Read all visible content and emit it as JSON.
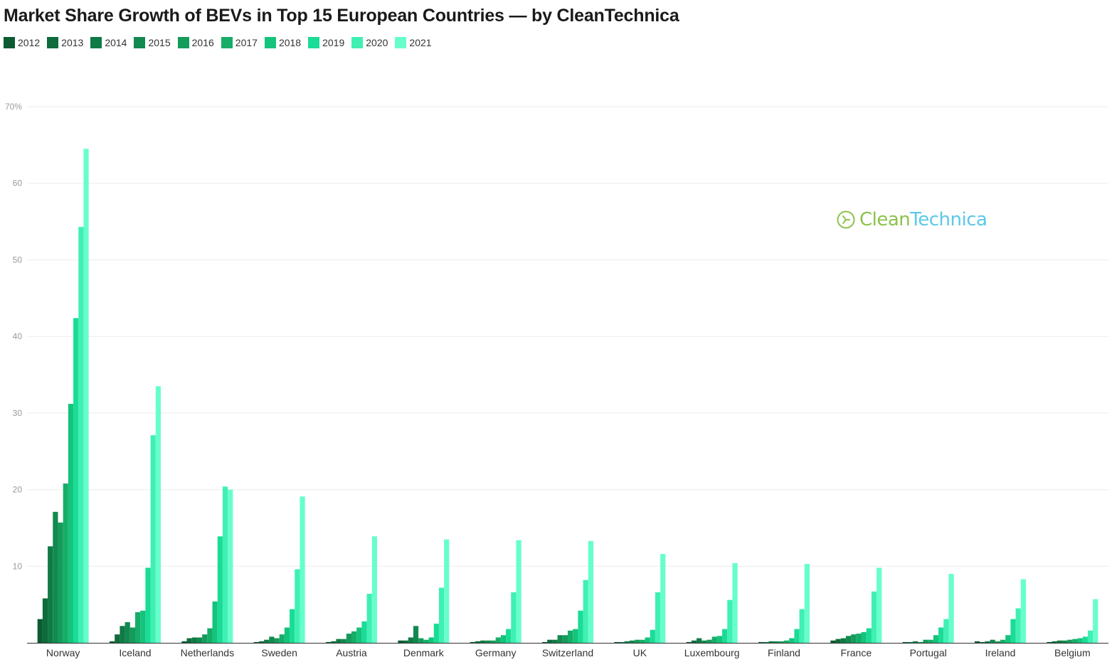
{
  "title": "Market Share Growth of BEVs in Top 15 European Countries — by CleanTechnica",
  "watermark": {
    "clean": "Clean",
    "technica": "Technica"
  },
  "colors": {
    "2012": "#0b5a32",
    "2013": "#0e6b3c",
    "2014": "#107a45",
    "2015": "#12894e",
    "2016": "#159b5b",
    "2017": "#16ad68",
    "2018": "#14c37c",
    "2019": "#1adc96",
    "2020": "#3ff0b2",
    "2021": "#66ffcc"
  },
  "chart_data": {
    "type": "bar",
    "title": "Market Share Growth of BEVs in Top 15 European Countries — by CleanTechnica",
    "xlabel": "",
    "ylabel": "",
    "ylim": [
      0,
      70
    ],
    "yticks": [
      "10",
      "20",
      "30",
      "40",
      "50",
      "60",
      "70%"
    ],
    "ytick_values": [
      10,
      20,
      30,
      40,
      50,
      60,
      70
    ],
    "grid": true,
    "legend": "top-left",
    "categories": [
      "Norway",
      "Iceland",
      "Netherlands",
      "Sweden",
      "Austria",
      "Denmark",
      "Germany",
      "Switzerland",
      "UK",
      "Luxembourg",
      "Finland",
      "France",
      "Portugal",
      "Ireland",
      "Belgium"
    ],
    "series": [
      {
        "name": "2012",
        "values": [
          3.1,
          0.2,
          0.2,
          0.1,
          0.1,
          0.3,
          0.1,
          0.1,
          0.1,
          0.1,
          0.1,
          0.3,
          0.1,
          0.2,
          0.1
        ]
      },
      {
        "name": "2013",
        "values": [
          5.8,
          1.1,
          0.6,
          0.2,
          0.2,
          0.3,
          0.2,
          0.4,
          0.1,
          0.3,
          0.1,
          0.5,
          0.1,
          0.1,
          0.2
        ]
      },
      {
        "name": "2014",
        "values": [
          12.6,
          2.2,
          0.7,
          0.4,
          0.5,
          0.7,
          0.3,
          0.4,
          0.2,
          0.6,
          0.2,
          0.6,
          0.2,
          0.2,
          0.3
        ]
      },
      {
        "name": "2015",
        "values": [
          17.1,
          2.7,
          0.7,
          0.8,
          0.5,
          2.2,
          0.3,
          1.0,
          0.3,
          0.3,
          0.2,
          0.9,
          0.1,
          0.4,
          0.3
        ]
      },
      {
        "name": "2016",
        "values": [
          15.7,
          2.0,
          1.1,
          0.6,
          1.2,
          0.6,
          0.3,
          1.0,
          0.4,
          0.4,
          0.2,
          1.1,
          0.4,
          0.2,
          0.4
        ]
      },
      {
        "name": "2017",
        "values": [
          20.8,
          4.0,
          1.9,
          1.1,
          1.5,
          0.4,
          0.7,
          1.6,
          0.4,
          0.8,
          0.3,
          1.2,
          0.4,
          0.4,
          0.5
        ]
      },
      {
        "name": "2018",
        "values": [
          31.2,
          4.2,
          5.4,
          2.0,
          2.0,
          0.7,
          1.0,
          1.8,
          0.7,
          0.9,
          0.6,
          1.4,
          1.0,
          1.0,
          0.6
        ]
      },
      {
        "name": "2019",
        "values": [
          42.4,
          9.8,
          13.9,
          4.4,
          2.8,
          2.5,
          1.8,
          4.2,
          1.7,
          1.8,
          1.8,
          1.9,
          2.0,
          3.1,
          0.8
        ]
      },
      {
        "name": "2020",
        "values": [
          54.3,
          27.1,
          20.4,
          9.6,
          6.4,
          7.2,
          6.6,
          8.2,
          6.6,
          5.6,
          4.4,
          6.7,
          3.1,
          4.5,
          1.6
        ]
      },
      {
        "name": "2021",
        "values": [
          64.5,
          33.5,
          20.0,
          19.1,
          13.9,
          13.5,
          13.4,
          13.3,
          11.6,
          10.4,
          10.3,
          9.8,
          9.0,
          8.3,
          5.7
        ]
      }
    ]
  }
}
